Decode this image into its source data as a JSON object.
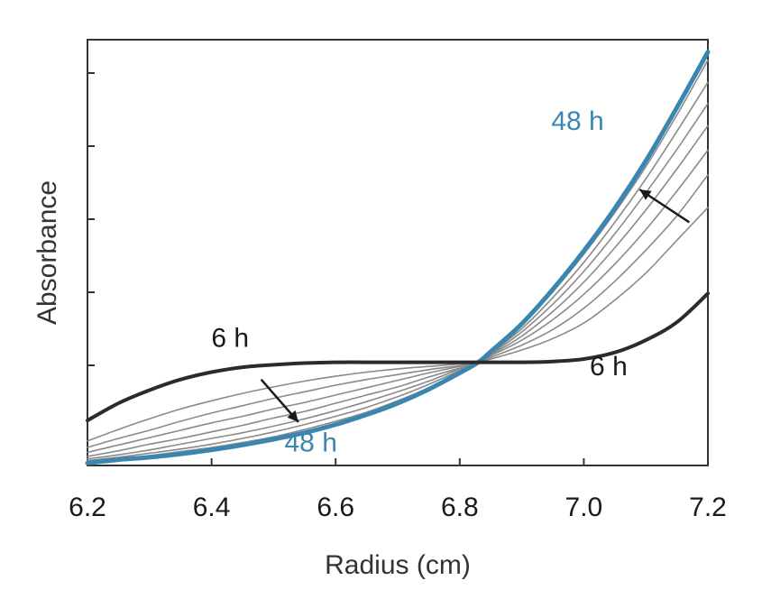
{
  "chart_data": {
    "type": "line",
    "title": "",
    "xlabel": "Radius (cm)",
    "ylabel": "Absorbance",
    "xlim": [
      6.2,
      7.2
    ],
    "ylim": [
      0,
      5.2
    ],
    "x_ticks": [
      "6.2",
      "6.4",
      "6.6",
      "6.8",
      "7.0",
      "7.2"
    ],
    "x_tick_values": [
      6.2,
      6.4,
      6.6,
      6.8,
      7.0,
      7.2
    ],
    "y_ticks_count": 6,
    "grid": false,
    "legend": "none",
    "colors": {
      "first": "#2b2b2b",
      "middle": "#8a8a8a",
      "last": "#3a86b0",
      "axis": "#333333"
    },
    "x": [
      6.2,
      6.25,
      6.3,
      6.35,
      6.4,
      6.45,
      6.5,
      6.55,
      6.6,
      6.65,
      6.7,
      6.75,
      6.8,
      6.83,
      6.85,
      6.9,
      6.95,
      7.0,
      7.05,
      7.1,
      7.15,
      7.2
    ],
    "series": [
      {
        "values": [
          0.55,
          0.76,
          0.92,
          1.05,
          1.14,
          1.2,
          1.23,
          1.25,
          1.26,
          1.26,
          1.26,
          1.26,
          1.26,
          1.26,
          1.26,
          1.26,
          1.27,
          1.3,
          1.38,
          1.53,
          1.75,
          2.1
        ]
      },
      {
        "values": [
          0.3,
          0.44,
          0.57,
          0.69,
          0.79,
          0.88,
          0.96,
          1.03,
          1.09,
          1.14,
          1.18,
          1.21,
          1.24,
          1.26,
          1.3,
          1.41,
          1.55,
          1.74,
          2.02,
          2.35,
          2.75,
          3.15
        ]
      },
      {
        "values": [
          0.22,
          0.33,
          0.43,
          0.54,
          0.64,
          0.73,
          0.82,
          0.9,
          0.98,
          1.05,
          1.11,
          1.17,
          1.22,
          1.26,
          1.32,
          1.47,
          1.66,
          1.92,
          2.25,
          2.63,
          3.05,
          3.55
        ]
      },
      {
        "values": [
          0.16,
          0.25,
          0.34,
          0.43,
          0.52,
          0.6,
          0.69,
          0.77,
          0.86,
          0.95,
          1.04,
          1.13,
          1.21,
          1.26,
          1.34,
          1.53,
          1.78,
          2.09,
          2.46,
          2.88,
          3.35,
          3.85
        ]
      },
      {
        "values": [
          0.11,
          0.18,
          0.26,
          0.33,
          0.41,
          0.49,
          0.58,
          0.66,
          0.76,
          0.86,
          0.96,
          1.08,
          1.19,
          1.26,
          1.35,
          1.58,
          1.88,
          2.24,
          2.66,
          3.12,
          3.62,
          4.15
        ]
      },
      {
        "values": [
          0.08,
          0.13,
          0.19,
          0.26,
          0.33,
          0.4,
          0.48,
          0.57,
          0.67,
          0.78,
          0.9,
          1.03,
          1.18,
          1.26,
          1.36,
          1.63,
          1.97,
          2.37,
          2.83,
          3.33,
          3.86,
          4.42
        ]
      },
      {
        "values": [
          0.06,
          0.1,
          0.15,
          0.2,
          0.26,
          0.33,
          0.41,
          0.5,
          0.6,
          0.71,
          0.84,
          0.99,
          1.16,
          1.26,
          1.37,
          1.67,
          2.05,
          2.48,
          2.97,
          3.5,
          4.08,
          4.68
        ]
      },
      {
        "values": [
          0.04,
          0.08,
          0.12,
          0.17,
          0.22,
          0.28,
          0.35,
          0.44,
          0.54,
          0.65,
          0.79,
          0.95,
          1.14,
          1.26,
          1.38,
          1.71,
          2.12,
          2.58,
          3.09,
          3.65,
          4.28,
          4.95
        ]
      },
      {
        "values": [
          0.03,
          0.07,
          0.1,
          0.14,
          0.19,
          0.25,
          0.32,
          0.4,
          0.5,
          0.62,
          0.76,
          0.93,
          1.13,
          1.26,
          1.39,
          1.73,
          2.15,
          2.62,
          3.14,
          3.72,
          4.37,
          5.05
        ]
      }
    ],
    "annotations": [
      {
        "text": "6 h",
        "x": 6.43,
        "y": 1.45,
        "color": "#1a1a1a"
      },
      {
        "text": "6 h",
        "x": 7.04,
        "y": 1.1,
        "color": "#1a1a1a"
      },
      {
        "text": "48 h",
        "x": 6.56,
        "y": 0.17,
        "color": "#3a86b0"
      },
      {
        "text": "48 h",
        "x": 6.99,
        "y": 4.1,
        "color": "#3a86b0"
      }
    ],
    "arrows": [
      {
        "from": [
          6.48,
          1.05
        ],
        "to": [
          6.54,
          0.53
        ]
      },
      {
        "from": [
          7.17,
          2.97
        ],
        "to": [
          7.09,
          3.37
        ]
      }
    ]
  }
}
